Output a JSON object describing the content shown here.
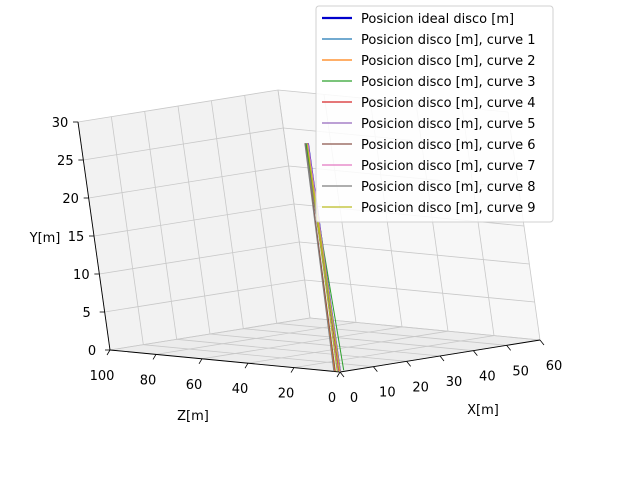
{
  "chart_data": {
    "type": "line3d",
    "title": "",
    "xlabel": "X[m]",
    "ylabel": "Y[m]",
    "zlabel": "Z[m]",
    "x_ticks": [
      "0",
      "10",
      "20",
      "30",
      "40",
      "50",
      "60"
    ],
    "y_ticks": [
      "0",
      "5",
      "10",
      "15",
      "20",
      "25",
      "30"
    ],
    "z_ticks": [
      "0",
      "20",
      "40",
      "60",
      "80",
      "100"
    ],
    "xlim": [
      0,
      60
    ],
    "ylim": [
      0,
      30
    ],
    "zlim": [
      0,
      100
    ],
    "grid": true,
    "legend_position": "top-right",
    "series": [
      {
        "name": "Posicion ideal disco [m]",
        "color": "#0000cc",
        "emphasis": true,
        "x": [
          0,
          0,
          0
        ],
        "y": [
          0,
          30,
          0
        ],
        "z": [
          0,
          0,
          0
        ]
      },
      {
        "name": "Posicion disco [m], curve 1",
        "color": "#1f77b4",
        "x": [
          0,
          0.3,
          0.6
        ],
        "y": [
          0,
          30,
          0
        ],
        "z": [
          0,
          1,
          2
        ]
      },
      {
        "name": "Posicion disco [m], curve 2",
        "color": "#ff7f0e",
        "x": [
          0,
          0.2,
          0.4
        ],
        "y": [
          0,
          30,
          0
        ],
        "z": [
          0,
          1.5,
          3
        ]
      },
      {
        "name": "Posicion disco [m], curve 3",
        "color": "#2ca02c",
        "x": [
          0,
          0.1,
          2.5
        ],
        "y": [
          0,
          30,
          0
        ],
        "z": [
          0,
          1,
          2
        ]
      },
      {
        "name": "Posicion disco [m], curve 4",
        "color": "#d62728",
        "x": [
          0,
          0.5,
          1.0
        ],
        "y": [
          0,
          30,
          0
        ],
        "z": [
          0,
          1,
          2
        ]
      },
      {
        "name": "Posicion disco [m], curve 5",
        "color": "#9467bd",
        "x": [
          0,
          0.4,
          0.8
        ],
        "y": [
          0,
          30,
          0
        ],
        "z": [
          0,
          0.5,
          1
        ]
      },
      {
        "name": "Posicion disco [m], curve 6",
        "color": "#8c564b",
        "x": [
          0,
          0.2,
          0.3
        ],
        "y": [
          0,
          30,
          0
        ],
        "z": [
          0,
          1.5,
          2.5
        ]
      },
      {
        "name": "Posicion disco [m], curve 7",
        "color": "#e377c2",
        "x": [
          0,
          0.3,
          0.5
        ],
        "y": [
          0,
          30,
          0
        ],
        "z": [
          0,
          0.5,
          1
        ]
      },
      {
        "name": "Posicion disco [m], curve 8",
        "color": "#7f7f7f",
        "x": [
          0,
          0.1,
          0.2
        ],
        "y": [
          0,
          30,
          0
        ],
        "z": [
          0,
          1.5,
          3
        ]
      },
      {
        "name": "Posicion disco [m], curve 9",
        "color": "#bcbd22",
        "x": [
          0,
          0.1,
          0.2
        ],
        "y": [
          0,
          30,
          0
        ],
        "z": [
          0,
          0.5,
          1.5
        ]
      }
    ]
  }
}
